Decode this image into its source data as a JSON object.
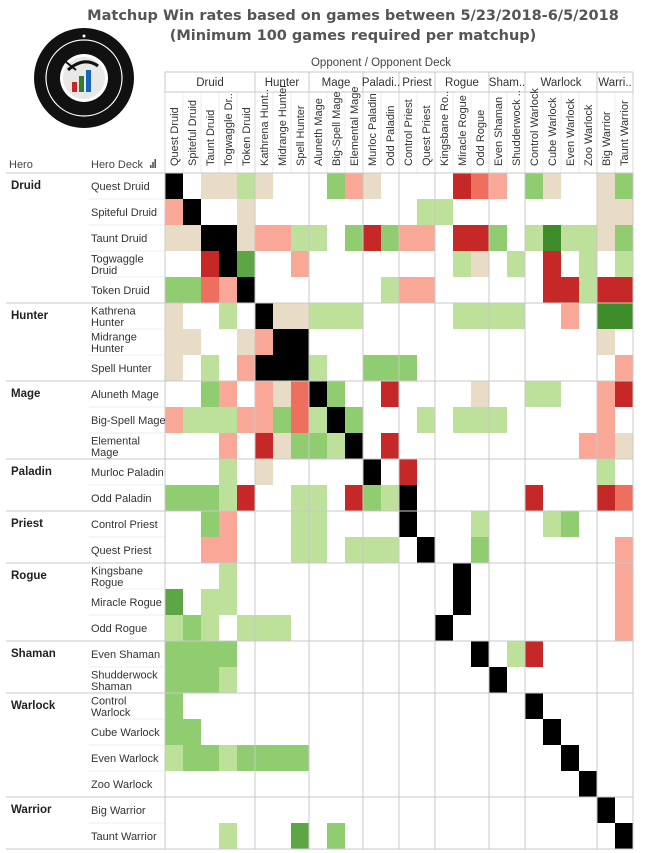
{
  "chart_data": {
    "type": "heatmap",
    "title": "Matchup Win rates based on games between 5/23/2018-6/5/2018",
    "subtitle": "(Minimum 100 games required per matchup)",
    "column_header": "Opponent / Opponent Deck",
    "row_header_hero": "Hero",
    "row_header_deck": "Hero Deck",
    "legend": "none",
    "color_scale": {
      "0": "#c62828",
      "1": "#ef6f5e",
      "2": "#f9a897",
      "3": "#e9dcc6",
      "4": "#ffffff",
      "5": "#bde19b",
      "6": "#8fcd70",
      "7": "#5da645",
      "8": "#3f8c2a",
      "9": "#000000"
    },
    "groups": [
      {
        "hero": "Druid",
        "col_label": "Druid",
        "decks": [
          "Quest Druid",
          "Spiteful Druid",
          "Taunt Druid",
          "Togwaggle Druid",
          "Token Druid"
        ]
      },
      {
        "hero": "Hunter",
        "col_label": "Hunter",
        "decks": [
          "Kathrena Hunter",
          "Midrange Hunter",
          "Spell Hunter"
        ]
      },
      {
        "hero": "Mage",
        "col_label": "Mage",
        "decks": [
          "Aluneth Mage",
          "Big-Spell Mage",
          "Elemental Mage"
        ]
      },
      {
        "hero": "Paladin",
        "col_label": "Paladi..",
        "decks": [
          "Murloc Paladin",
          "Odd Paladin"
        ]
      },
      {
        "hero": "Priest",
        "col_label": "Priest",
        "decks": [
          "Control Priest",
          "Quest Priest"
        ]
      },
      {
        "hero": "Rogue",
        "col_label": "Rogue",
        "decks": [
          "Kingsbane Rogue",
          "Miracle Rogue",
          "Odd Rogue"
        ]
      },
      {
        "hero": "Shaman",
        "col_label": "Sham..",
        "decks": [
          "Even Shaman",
          "Shudderwock Shaman"
        ]
      },
      {
        "hero": "Warlock",
        "col_label": "Warlock",
        "decks": [
          "Control Warlock",
          "Cube Warlock",
          "Even Warlock",
          "Zoo Warlock"
        ]
      },
      {
        "hero": "Warrior",
        "col_label": "Warri..",
        "decks": [
          "Big Warrior",
          "Taunt Warrior"
        ]
      }
    ],
    "col_labels": [
      "Quest Druid",
      "Spiteful Druid",
      "Taunt Druid",
      "Togwaggle Dr..",
      "Token Druid",
      "Kathrena Hunt..",
      "Midrange Hunter",
      "Spell Hunter",
      "Aluneth Mage",
      "Big-Spell Mage",
      "Elemental Mage",
      "Murloc Paladin",
      "Odd Paladin",
      "Control Priest",
      "Quest Priest",
      "Kingsbane Ro..",
      "Miracle Rogue",
      "Odd Rogue",
      "Even Shaman",
      "Shudderwock ..",
      "Control Warlock",
      "Cube Warlock",
      "Even Warlock",
      "Zoo Warlock",
      "Big Warrior",
      "Taunt Warrior"
    ],
    "row_labels": [
      [
        "Quest Druid"
      ],
      [
        "Spiteful Druid"
      ],
      [
        "Taunt Druid"
      ],
      [
        "Togwaggle",
        "Druid"
      ],
      [
        "Token Druid"
      ],
      [
        "Kathrena",
        "Hunter"
      ],
      [
        "Midrange",
        "Hunter"
      ],
      [
        "Spell Hunter"
      ],
      [
        "Aluneth Mage"
      ],
      [
        "Big-Spell Mage"
      ],
      [
        "Elemental",
        "Mage"
      ],
      [
        "Murloc Paladin"
      ],
      [
        "Odd Paladin"
      ],
      [
        "Control Priest"
      ],
      [
        "Quest Priest"
      ],
      [
        "Kingsbane",
        "Rogue"
      ],
      [
        "Miracle Rogue"
      ],
      [
        "Odd Rogue"
      ],
      [
        "Even Shaman"
      ],
      [
        "Shudderwock",
        "Shaman"
      ],
      [
        "Control",
        "Warlock"
      ],
      [
        "Cube Warlock"
      ],
      [
        "Even Warlock"
      ],
      [
        "Zoo Warlock"
      ],
      [
        "Big Warrior"
      ],
      [
        "Taunt Warrior"
      ]
    ],
    "matrix": [
      "94335344462344440124634436",
      "29443444444444554444444433",
      "33993225546062240064585536",
      "44097442444444445345404545",
      "66129444444452244444400500",
      "34454933555444445555442488",
      "33443299444444444444444434",
      "34542999544666444444444442",
      "44624231964404444344554420",
      "25552261596444545554444424",
      "44424036659404444444444223",
      "44454344444940444444444454",
      "66650445540659444444044401",
      "44624445544449444544456444",
      "44224445545554944644444442",
      "44454444444444449444444442",
      "74554444444444449444444442",
      "56545554444444494444444442",
      "66664444444444444945044444",
      "66654444444444444494444444",
      "64444444444444444444944444",
      "66444444444444444444494444",
      "56656666444444444444449444",
      "44444444444444444444444944",
      "44444444444444444444444494",
      "44454447464444444444444449"
    ]
  }
}
